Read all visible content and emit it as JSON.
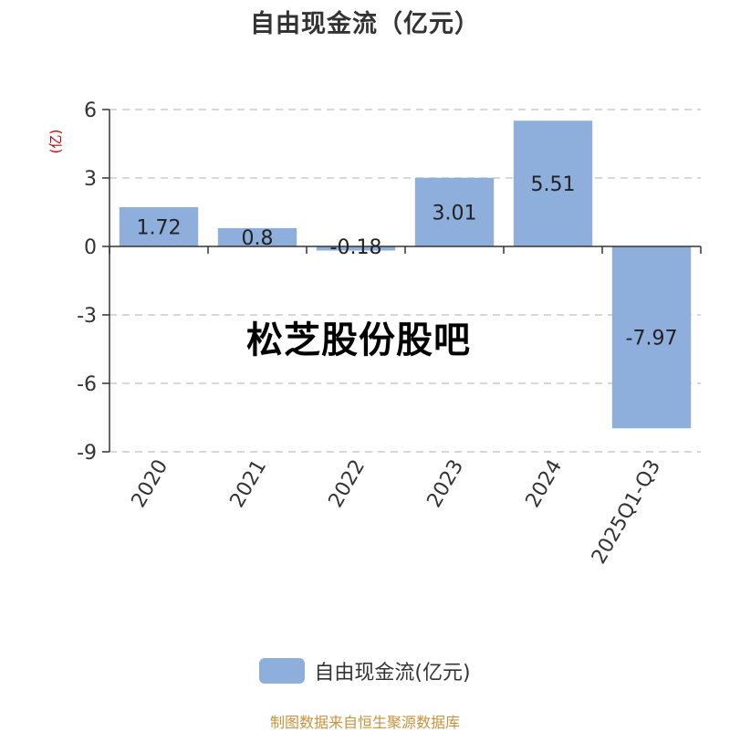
{
  "page": {
    "title": "自由现金流（亿元）",
    "watermark": "松芝股份股吧",
    "source": "制图数据来自恒生聚源数据库"
  },
  "chart_data": {
    "type": "bar",
    "title": "自由现金流（亿元）",
    "ylabel": "(亿)",
    "xlabel": "",
    "categories": [
      "2020",
      "2021",
      "2022",
      "2023",
      "2024",
      "2025Q1-Q3"
    ],
    "series": [
      {
        "name": "自由现金流(亿元)",
        "values": [
          1.72,
          0.8,
          -0.18,
          3.01,
          5.51,
          -7.97
        ]
      }
    ],
    "value_labels": [
      "1.72",
      "0.8",
      "-0.18",
      "3.01",
      "5.51",
      "-7.97"
    ],
    "ylim": [
      -9,
      6
    ],
    "yticks": [
      6,
      3,
      0,
      -3,
      -6,
      -9
    ],
    "ytick_labels": [
      "6",
      "3",
      "0",
      "-3",
      "-6",
      "-9"
    ],
    "grid": true,
    "legend_position": "bottom",
    "colors": {
      "bar": "#8eaedb",
      "axis": "#333333",
      "grid": "#cccccc",
      "ylabel": "#cc0000",
      "source": "#c8933c",
      "text": "#333333"
    }
  }
}
